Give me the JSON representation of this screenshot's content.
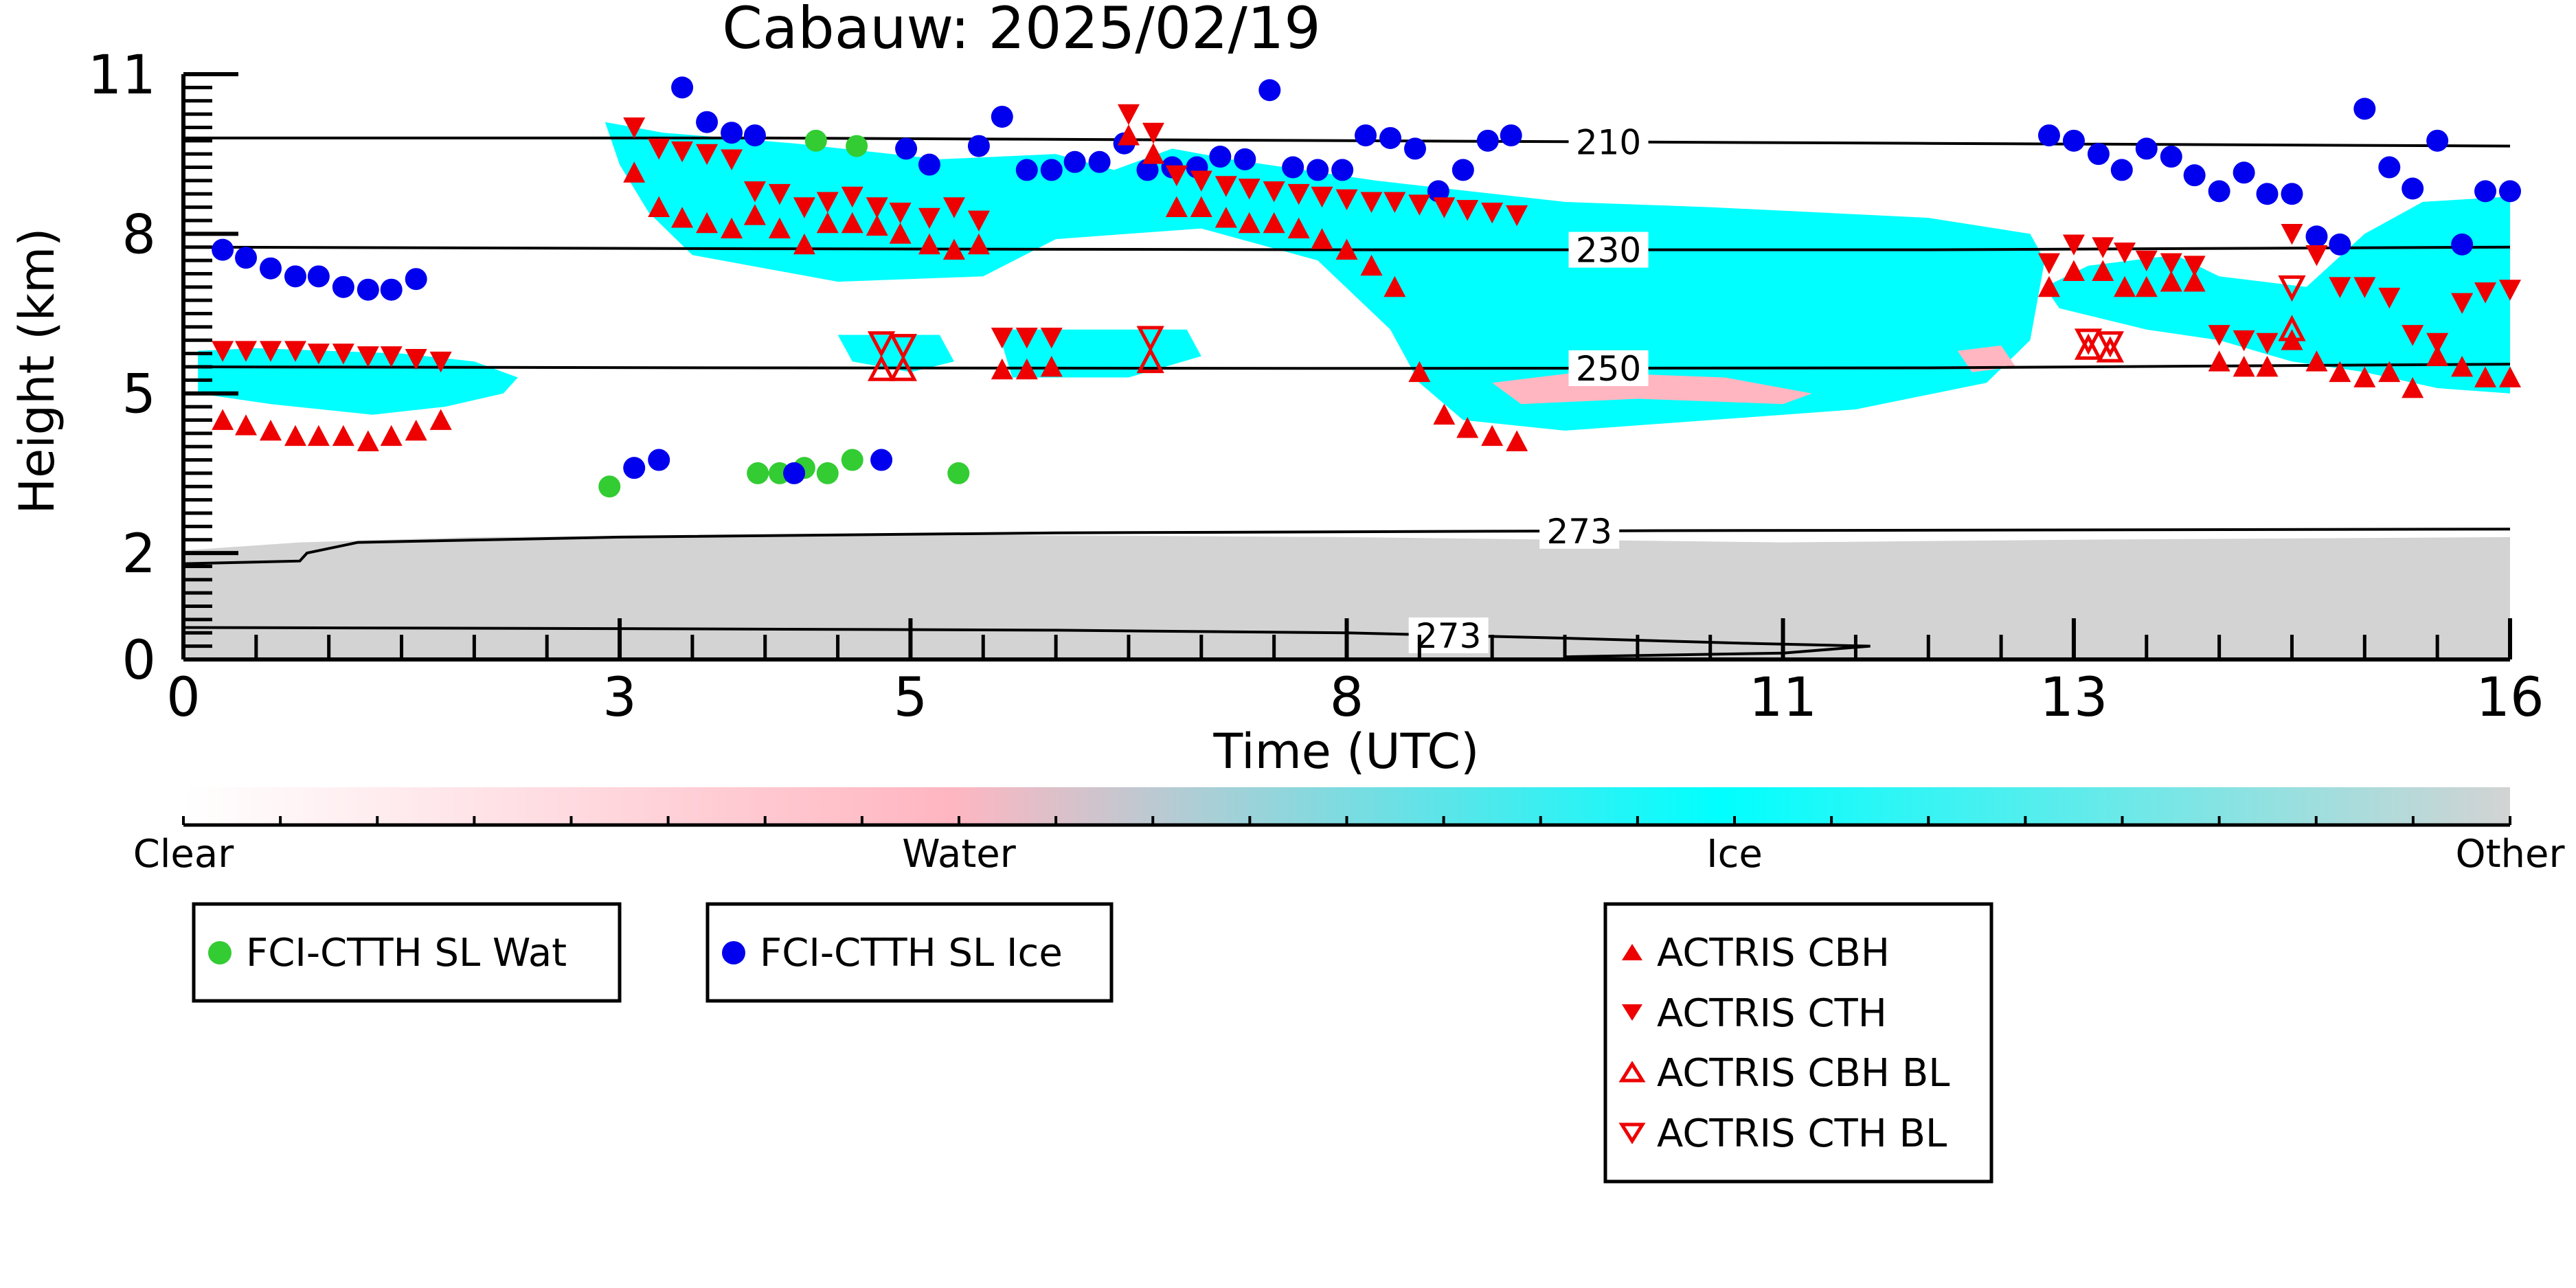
{
  "chart_data": {
    "type": "scatter",
    "title": "Cabauw: 2025/02/19",
    "xlabel": "Time (UTC)",
    "ylabel": "Height (km)",
    "xlim": [
      0,
      16
    ],
    "ylim": [
      0,
      11
    ],
    "x_ticks": [
      0,
      3,
      5,
      8,
      11,
      13,
      16
    ],
    "y_ticks": [
      0,
      2,
      5,
      8,
      11
    ],
    "colors": {
      "clear": "#ffffff",
      "water": "#ffb6c1",
      "ice": "#00ffff",
      "other": "#d3d3d3",
      "fci_water": "#33cc33",
      "fci_ice": "#0000ee",
      "actris": "#ee0000"
    },
    "colorbar": {
      "labels": [
        "Clear",
        "Water",
        "Ice",
        "Other"
      ]
    },
    "legend_fci_water": "FCI-CTTH SL Wat",
    "legend_fci_ice": "FCI-CTTH SL Ice",
    "legend_actris": [
      "ACTRIS CBH",
      "ACTRIS CTH",
      "ACTRIS CBH BL",
      "ACTRIS CTH BL"
    ],
    "temperature_contours": [
      {
        "label": "210",
        "label_x": 9.8,
        "points": [
          [
            0,
            9.8
          ],
          [
            4,
            9.8
          ],
          [
            8,
            9.75
          ],
          [
            12,
            9.7
          ],
          [
            16,
            9.65
          ]
        ]
      },
      {
        "label": "230",
        "label_x": 9.8,
        "points": [
          [
            0,
            7.75
          ],
          [
            4,
            7.72
          ],
          [
            8,
            7.7
          ],
          [
            12,
            7.7
          ],
          [
            16,
            7.75
          ]
        ]
      },
      {
        "label": "250",
        "label_x": 9.8,
        "points": [
          [
            0,
            5.5
          ],
          [
            4,
            5.48
          ],
          [
            8,
            5.47
          ],
          [
            12,
            5.48
          ],
          [
            16,
            5.55
          ]
        ]
      },
      {
        "label": "273",
        "label_x": 9.6,
        "points": [
          [
            0,
            1.8
          ],
          [
            0.8,
            1.85
          ],
          [
            0.85,
            2.0
          ],
          [
            1.2,
            2.2
          ],
          [
            3,
            2.3
          ],
          [
            6,
            2.38
          ],
          [
            10,
            2.42
          ],
          [
            16,
            2.45
          ]
        ]
      },
      {
        "label": "273",
        "label_x": 8.7,
        "points": [
          [
            0,
            0.6
          ],
          [
            3,
            0.58
          ],
          [
            6,
            0.55
          ],
          [
            8,
            0.5
          ],
          [
            9.5,
            0.4
          ],
          [
            10.8,
            0.3
          ],
          [
            11.6,
            0.25
          ],
          [
            11.0,
            0.12
          ],
          [
            9.5,
            0.05
          ]
        ]
      }
    ],
    "clouds": [
      {
        "phase": "ice",
        "points": [
          [
            0.1,
            5.8
          ],
          [
            0.5,
            5.85
          ],
          [
            1.5,
            5.75
          ],
          [
            2.0,
            5.6
          ],
          [
            2.3,
            5.3
          ],
          [
            2.2,
            5.0
          ],
          [
            1.8,
            4.75
          ],
          [
            1.3,
            4.6
          ],
          [
            0.6,
            4.8
          ],
          [
            0.1,
            5.0
          ]
        ]
      },
      {
        "phase": "ice",
        "points": [
          [
            2.9,
            10.1
          ],
          [
            3.3,
            9.9
          ],
          [
            4.2,
            9.7
          ],
          [
            5.2,
            9.4
          ],
          [
            6.0,
            9.5
          ],
          [
            6.4,
            9.2
          ],
          [
            6.8,
            9.6
          ],
          [
            7.2,
            9.4
          ],
          [
            8.2,
            9.0
          ],
          [
            9.5,
            8.6
          ],
          [
            10.5,
            8.5
          ],
          [
            12.0,
            8.3
          ],
          [
            12.7,
            8.0
          ],
          [
            12.8,
            7.5
          ],
          [
            12.7,
            6.0
          ],
          [
            12.4,
            5.2
          ],
          [
            11.5,
            4.7
          ],
          [
            10.5,
            4.5
          ],
          [
            9.5,
            4.3
          ],
          [
            8.8,
            4.5
          ],
          [
            8.5,
            5.2
          ],
          [
            8.3,
            6.2
          ],
          [
            7.8,
            7.5
          ],
          [
            7.0,
            8.1
          ],
          [
            6.0,
            7.9
          ],
          [
            5.5,
            7.2
          ],
          [
            4.5,
            7.1
          ],
          [
            3.5,
            7.6
          ],
          [
            3.2,
            8.4
          ],
          [
            3.0,
            9.3
          ]
        ]
      },
      {
        "phase": "ice",
        "points": [
          [
            4.5,
            6.1
          ],
          [
            5.2,
            6.1
          ],
          [
            5.3,
            5.6
          ],
          [
            5.0,
            5.4
          ],
          [
            4.6,
            5.6
          ]
        ]
      },
      {
        "phase": "ice",
        "points": [
          [
            5.6,
            6.2
          ],
          [
            6.9,
            6.2
          ],
          [
            7.0,
            5.7
          ],
          [
            6.5,
            5.3
          ],
          [
            5.7,
            5.3
          ]
        ]
      },
      {
        "phase": "ice",
        "points": [
          [
            12.8,
            7.0
          ],
          [
            13.1,
            7.4
          ],
          [
            13.7,
            7.6
          ],
          [
            14.0,
            7.2
          ],
          [
            14.6,
            7.0
          ],
          [
            15.0,
            8.0
          ],
          [
            15.4,
            8.6
          ],
          [
            16.0,
            8.7
          ],
          [
            16.0,
            5.0
          ],
          [
            15.5,
            5.1
          ],
          [
            15.0,
            5.4
          ],
          [
            14.5,
            5.6
          ],
          [
            14.0,
            6.0
          ],
          [
            13.5,
            6.2
          ],
          [
            13.2,
            6.4
          ],
          [
            12.9,
            6.6
          ]
        ]
      },
      {
        "phase": "water",
        "points": [
          [
            9.0,
            5.2
          ],
          [
            9.6,
            5.4
          ],
          [
            10.6,
            5.3
          ],
          [
            11.2,
            5.0
          ],
          [
            11.0,
            4.8
          ],
          [
            10.0,
            4.9
          ],
          [
            9.2,
            4.8
          ]
        ]
      },
      {
        "phase": "water",
        "points": [
          [
            12.2,
            5.8
          ],
          [
            12.5,
            5.9
          ],
          [
            12.6,
            5.5
          ],
          [
            12.3,
            5.4
          ]
        ]
      }
    ],
    "boundary_layer": {
      "phase": "other",
      "points": [
        [
          0,
          0
        ],
        [
          0,
          2.05
        ],
        [
          0.8,
          2.2
        ],
        [
          2,
          2.3
        ],
        [
          5,
          2.35
        ],
        [
          8,
          2.3
        ],
        [
          11,
          2.2
        ],
        [
          13,
          2.25
        ],
        [
          16,
          2.3
        ],
        [
          16,
          0
        ]
      ]
    },
    "series": [
      {
        "name": "FCI-CTTH SL Wat",
        "marker": "circle",
        "color": "#33cc33",
        "x": [
          2.93,
          4.35,
          4.63,
          3.95,
          4.1,
          4.27,
          4.43,
          4.6,
          5.33
        ],
        "y": [
          3.25,
          9.75,
          9.65,
          3.5,
          3.5,
          3.6,
          3.5,
          3.75,
          3.5
        ]
      },
      {
        "name": "FCI-CTTH SL Ice",
        "marker": "circle",
        "color": "#0000ee",
        "x": [
          0.27,
          0.43,
          0.6,
          0.77,
          0.93,
          1.1,
          1.27,
          1.43,
          1.6,
          3.1,
          3.27,
          3.43,
          3.6,
          3.77,
          3.93,
          4.2,
          4.8,
          4.97,
          5.13,
          5.47,
          5.63,
          5.8,
          5.97,
          6.13,
          6.3,
          6.47,
          6.63,
          6.8,
          6.97,
          7.13,
          7.3,
          7.47,
          7.63,
          7.8,
          7.97,
          8.13,
          8.3,
          8.47,
          8.63,
          8.8,
          8.97,
          9.13,
          12.83,
          13.0,
          13.17,
          13.33,
          13.5,
          13.67,
          13.83,
          14.0,
          14.17,
          14.33,
          14.5,
          14.67,
          14.83,
          15.0,
          15.17,
          15.33,
          15.5,
          15.67,
          15.83,
          16.0
        ],
        "y": [
          7.7,
          7.55,
          7.35,
          7.2,
          7.2,
          7.0,
          6.95,
          6.95,
          7.15,
          3.6,
          3.75,
          10.75,
          10.1,
          9.9,
          9.85,
          3.5,
          3.75,
          9.6,
          9.3,
          9.65,
          10.2,
          9.2,
          9.2,
          9.35,
          9.35,
          9.7,
          9.2,
          9.25,
          9.25,
          9.45,
          9.4,
          10.7,
          9.25,
          9.2,
          9.2,
          9.85,
          9.8,
          9.6,
          8.8,
          9.2,
          9.75,
          9.85,
          9.85,
          9.75,
          9.5,
          9.2,
          9.6,
          9.45,
          9.1,
          8.8,
          9.15,
          8.75,
          8.75,
          7.95,
          7.8,
          10.35,
          9.25,
          8.85,
          9.75,
          7.8,
          8.8,
          8.8
        ]
      },
      {
        "name": "ACTRIS CBH",
        "marker": "triangle-up",
        "color": "#ee0000",
        "x": [
          0.27,
          0.43,
          0.6,
          0.77,
          0.93,
          1.1,
          1.27,
          1.43,
          1.6,
          1.77,
          3.1,
          3.27,
          3.43,
          3.6,
          3.77,
          3.93,
          4.1,
          4.27,
          4.43,
          4.6,
          4.77,
          4.93,
          5.13,
          5.3,
          5.47,
          5.63,
          5.8,
          5.97,
          6.5,
          6.67,
          6.83,
          7.0,
          7.17,
          7.33,
          7.5,
          7.67,
          7.83,
          8.0,
          8.17,
          8.33,
          8.5,
          8.67,
          8.83,
          9.0,
          9.17,
          12.83,
          13.0,
          13.2,
          13.35,
          13.5,
          13.67,
          13.83,
          14.0,
          14.17,
          14.33,
          14.5,
          14.67,
          14.83,
          15.0,
          15.17,
          15.33,
          15.5,
          15.67,
          15.83,
          16.0
        ],
        "y": [
          4.5,
          4.4,
          4.3,
          4.2,
          4.2,
          4.2,
          4.1,
          4.2,
          4.3,
          4.5,
          9.15,
          8.5,
          8.3,
          8.2,
          8.1,
          8.35,
          8.1,
          7.8,
          8.2,
          8.2,
          8.15,
          8.0,
          7.8,
          7.7,
          7.8,
          5.45,
          5.45,
          5.5,
          9.85,
          9.5,
          8.5,
          8.5,
          8.3,
          8.2,
          8.2,
          8.1,
          7.9,
          7.7,
          7.4,
          7.0,
          5.4,
          4.6,
          4.35,
          4.2,
          4.1,
          7.0,
          7.3,
          7.3,
          7.0,
          7.0,
          7.1,
          7.1,
          5.6,
          5.5,
          5.5,
          6.0,
          5.6,
          5.4,
          5.3,
          5.4,
          5.1,
          5.7,
          5.5,
          5.3,
          5.3
        ]
      },
      {
        "name": "ACTRIS CTH",
        "marker": "triangle-down",
        "color": "#ee0000",
        "x": [
          0.27,
          0.43,
          0.6,
          0.77,
          0.93,
          1.1,
          1.27,
          1.43,
          1.6,
          1.77,
          3.1,
          3.27,
          3.43,
          3.6,
          3.77,
          3.93,
          4.1,
          4.27,
          4.43,
          4.6,
          4.77,
          4.93,
          5.13,
          5.3,
          5.47,
          5.63,
          5.8,
          5.97,
          6.5,
          6.67,
          6.83,
          7.0,
          7.17,
          7.33,
          7.5,
          7.67,
          7.83,
          8.0,
          8.17,
          8.33,
          8.5,
          8.67,
          8.83,
          9.0,
          9.17,
          12.83,
          13.0,
          13.2,
          13.35,
          13.5,
          13.67,
          13.83,
          14.0,
          14.17,
          14.33,
          14.5,
          14.67,
          14.83,
          15.0,
          15.17,
          15.33,
          15.5,
          15.67,
          15.83,
          16.0
        ],
        "y": [
          5.8,
          5.8,
          5.8,
          5.8,
          5.75,
          5.75,
          5.7,
          5.7,
          5.65,
          5.6,
          10.0,
          9.6,
          9.55,
          9.5,
          9.4,
          8.8,
          8.75,
          8.5,
          8.6,
          8.7,
          8.5,
          8.4,
          8.3,
          8.5,
          8.25,
          6.05,
          6.05,
          6.05,
          10.25,
          9.9,
          9.1,
          9.0,
          8.9,
          8.85,
          8.8,
          8.75,
          8.7,
          8.65,
          8.6,
          8.6,
          8.55,
          8.5,
          8.45,
          8.4,
          8.35,
          7.45,
          7.8,
          7.75,
          7.65,
          7.5,
          7.45,
          7.4,
          6.1,
          6.0,
          5.95,
          8.0,
          7.6,
          7.0,
          7.0,
          6.8,
          6.1,
          5.95,
          6.7,
          6.9,
          6.95
        ]
      },
      {
        "name": "ACTRIS CBH BL",
        "marker": "triangle-up-open",
        "color": "#ee0000",
        "x": [
          4.8,
          4.95,
          6.65,
          13.1,
          13.25,
          14.5
        ],
        "y": [
          5.45,
          5.45,
          5.6,
          5.85,
          5.8,
          6.2
        ]
      },
      {
        "name": "ACTRIS CTH BL",
        "marker": "triangle-down-open",
        "color": "#ee0000",
        "x": [
          4.8,
          4.95,
          6.65,
          13.1,
          13.25,
          14.5
        ],
        "y": [
          5.95,
          5.9,
          6.05,
          6.0,
          5.95,
          7.0
        ]
      }
    ]
  }
}
